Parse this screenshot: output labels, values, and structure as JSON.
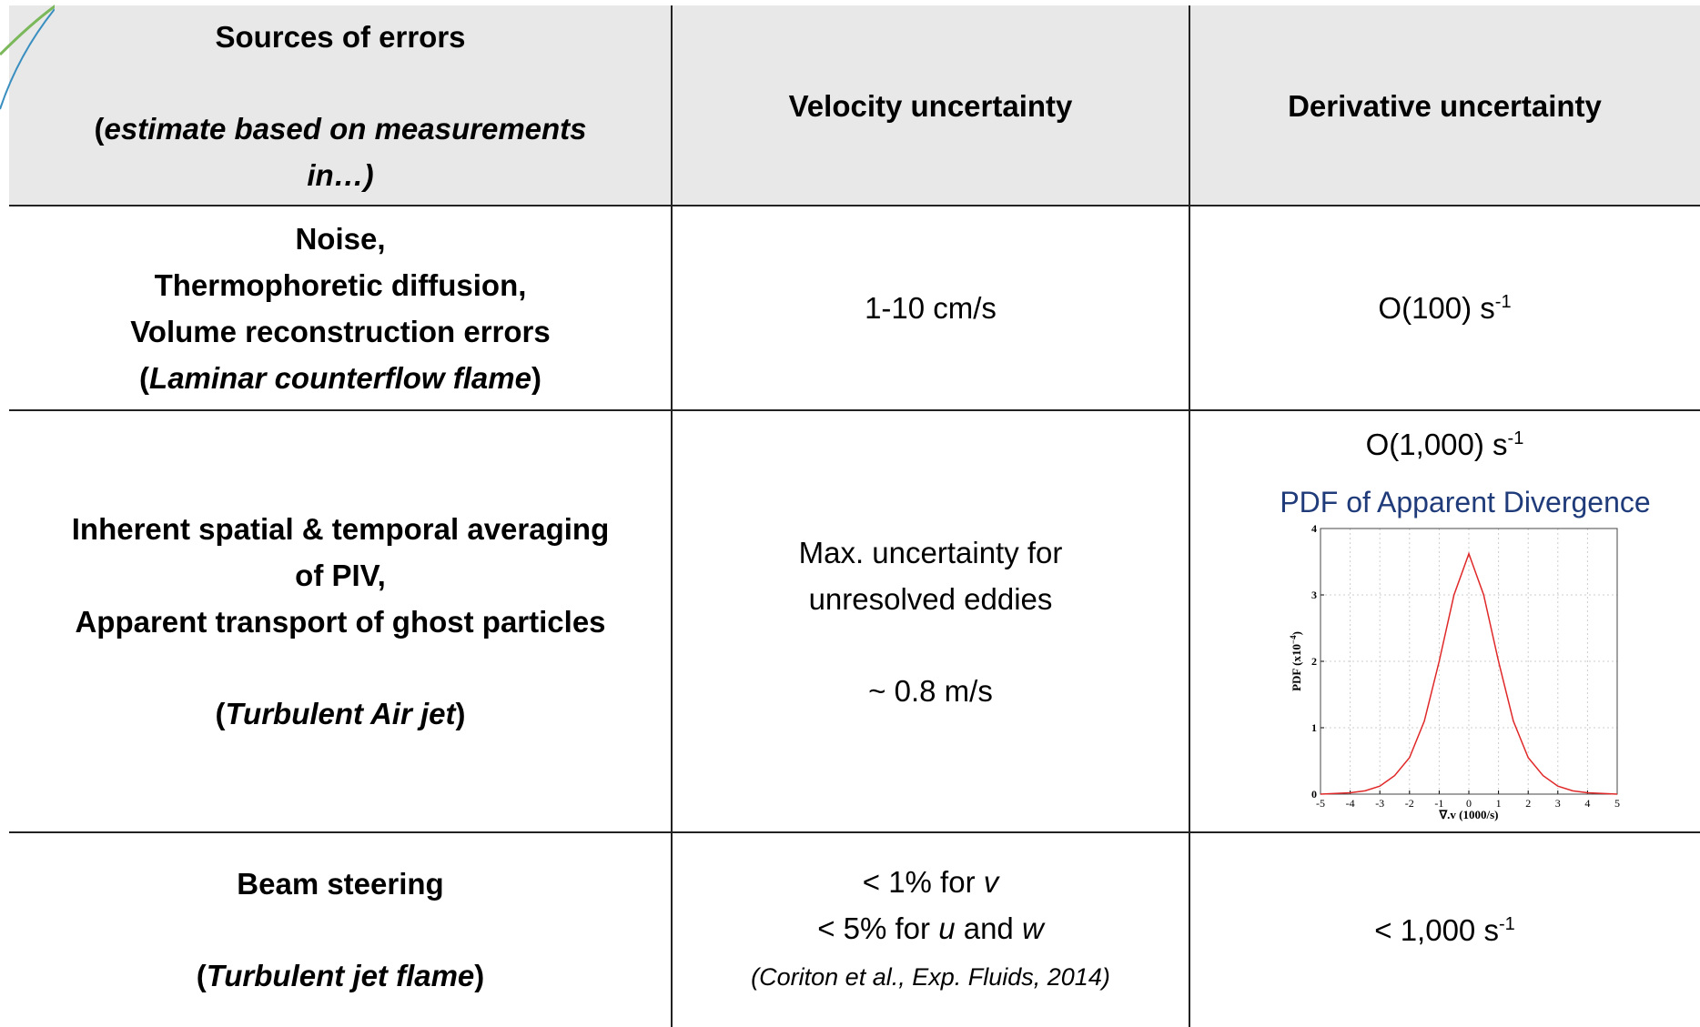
{
  "table": {
    "header": [
      {
        "paragraphs": [
          [
            [
              {
                "text": "Sources of errors",
                "style": "bold"
              }
            ]
          ],
          [
            [
              {
                "text": "(",
                "style": "bold"
              },
              {
                "text": "estimate based on measurements",
                "style": "bold-italic"
              }
            ],
            [
              {
                "text": "in…)",
                "style": "bold-italic"
              }
            ]
          ]
        ]
      },
      {
        "paragraphs": [
          [
            [
              {
                "text": "Velocity uncertainty",
                "style": "bold"
              }
            ]
          ]
        ]
      },
      {
        "paragraphs": [
          [
            [
              {
                "text": "Derivative uncertainty",
                "style": "bold"
              }
            ]
          ]
        ]
      }
    ],
    "rows": [
      [
        {
          "paragraphs": [
            [
              [
                {
                  "text": "Noise,",
                  "style": "bold"
                }
              ],
              [
                {
                  "text": "Thermophoretic diffusion,",
                  "style": "bold"
                }
              ],
              [
                {
                  "text": "Volume reconstruction errors",
                  "style": "bold"
                }
              ],
              [
                {
                  "text": "(",
                  "style": "bold"
                },
                {
                  "text": "Laminar counterflow flame",
                  "style": "bold-italic"
                },
                {
                  "text": ")",
                  "style": "bold"
                }
              ]
            ]
          ]
        },
        {
          "paragraphs": [
            [
              [
                {
                  "text": "1-10 cm/s",
                  "style": "normal"
                }
              ]
            ]
          ]
        },
        {
          "paragraphs": [
            [
              [
                {
                  "text": "O(100) s",
                  "style": "normal"
                },
                {
                  "text": "-1",
                  "style": "sup"
                }
              ]
            ]
          ]
        }
      ],
      [
        {
          "paragraphs": [
            [
              [
                {
                  "text": "Inherent spatial & temporal averaging",
                  "style": "bold"
                }
              ],
              [
                {
                  "text": "of PIV,",
                  "style": "bold"
                }
              ],
              [
                {
                  "text": "Apparent transport of ghost particles",
                  "style": "bold"
                }
              ]
            ],
            [
              [
                {
                  "text": "(",
                  "style": "bold"
                },
                {
                  "text": "Turbulent Air jet",
                  "style": "bold-italic"
                },
                {
                  "text": ")",
                  "style": "bold"
                }
              ]
            ]
          ]
        },
        {
          "paragraphs": [
            [
              [
                {
                  "text": "Max. uncertainty for",
                  "style": "normal"
                }
              ],
              [
                {
                  "text": "unresolved eddies",
                  "style": "normal"
                }
              ]
            ],
            [
              [
                {
                  "text": "~ 0.8 m/s",
                  "style": "normal"
                }
              ]
            ]
          ]
        },
        {
          "paragraphs": [
            [
              [
                {
                  "text": "O(1,000) s",
                  "style": "normal"
                },
                {
                  "text": "-1",
                  "style": "sup"
                }
              ]
            ]
          ],
          "chart": {
            "type": "line",
            "title": "PDF of Apparent Divergence",
            "title_color": "#1f3b7a",
            "color": "#e02828",
            "x": [
              -5,
              -4.5,
              -4,
              -3.5,
              -3,
              -2.5,
              -2,
              -1.5,
              -1,
              -0.5,
              0,
              0.5,
              1,
              1.5,
              2,
              2.5,
              3,
              3.5,
              4,
              4.5,
              5
            ],
            "values": [
              0,
              0.01,
              0.02,
              0.05,
              0.12,
              0.28,
              0.55,
              1.1,
              2.0,
              3.0,
              3.62,
              3.0,
              2.0,
              1.1,
              0.55,
              0.28,
              0.12,
              0.05,
              0.02,
              0.01,
              0
            ],
            "xlim": [
              -5,
              5
            ],
            "ylim": [
              0,
              4
            ],
            "xticks": [
              -5,
              -4,
              -3,
              -2,
              -1,
              0,
              1,
              2,
              3,
              4,
              5
            ],
            "yticks": [
              0,
              1,
              2,
              3,
              4
            ],
            "grid": true,
            "xlabel": "∇.v (1000/s)",
            "ylabel": [
              {
                "text": "PDF (x10",
                "style": "normal"
              },
              {
                "text": "−4",
                "style": "sup"
              },
              {
                "text": ")",
                "style": "normal"
              }
            ]
          }
        }
      ],
      [
        {
          "paragraphs": [
            [
              [
                {
                  "text": "Beam steering",
                  "style": "bold"
                }
              ]
            ],
            [
              [
                {
                  "text": "(",
                  "style": "bold"
                },
                {
                  "text": "Turbulent jet flame",
                  "style": "bold-italic"
                },
                {
                  "text": ")",
                  "style": "bold"
                }
              ]
            ]
          ]
        },
        {
          "paragraphs": [
            [
              [
                {
                  "text": "< 1% for ",
                  "style": "normal"
                },
                {
                  "text": "v",
                  "style": "italic"
                }
              ],
              [
                {
                  "text": "< 5% for ",
                  "style": "normal"
                },
                {
                  "text": "u",
                  "style": "italic"
                },
                {
                  "text": " and ",
                  "style": "normal"
                },
                {
                  "text": "w",
                  "style": "italic"
                }
              ],
              [
                {
                  "text": "(Coriton et al., Exp. Fluids, 2014)",
                  "style": "small-italic"
                }
              ]
            ]
          ]
        },
        {
          "paragraphs": [
            [
              [
                {
                  "text": "< 1,000 s",
                  "style": "normal"
                },
                {
                  "text": "-1",
                  "style": "sup"
                }
              ]
            ]
          ]
        }
      ]
    ]
  }
}
